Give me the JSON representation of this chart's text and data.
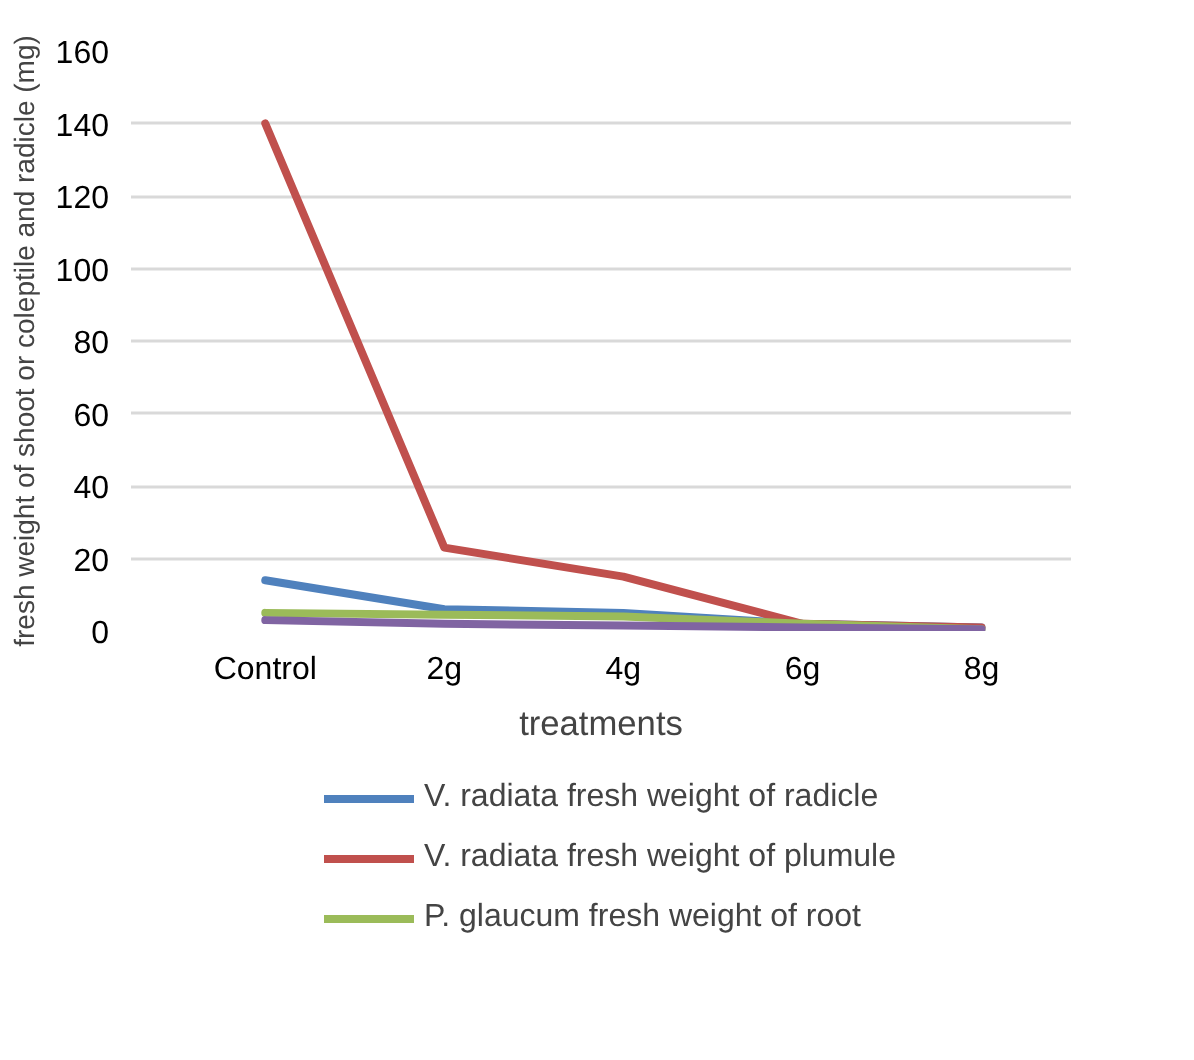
{
  "chart_data": {
    "type": "line",
    "xlabel": "treatments",
    "ylabel": "fresh weight of shoot or coleptile and radicle (mg)",
    "categories": [
      "Control",
      "2g",
      "4g",
      "6g",
      "8g"
    ],
    "series": [
      {
        "name": "V. radiata fresh weight of radicle",
        "color": "#4f81bd",
        "values": [
          14,
          6,
          5,
          2,
          1
        ]
      },
      {
        "name": "V. radiata fresh weight of plumule",
        "color": "#c0504d",
        "values": [
          140,
          23,
          15,
          2,
          1
        ]
      },
      {
        "name": "P. glaucum fresh weight of root",
        "color": "#9bbb59",
        "values": [
          5,
          4.5,
          4,
          2,
          0.5
        ]
      },
      {
        "color": "#8064a2",
        "values": [
          3,
          2,
          1.5,
          1,
          0.5
        ]
      }
    ],
    "ylim": [
      0,
      160
    ],
    "yticks": [
      0,
      20,
      40,
      60,
      80,
      100,
      120,
      140,
      160
    ],
    "grid": "y",
    "legend": "bottom",
    "marker": "none",
    "line_style": "solid"
  }
}
